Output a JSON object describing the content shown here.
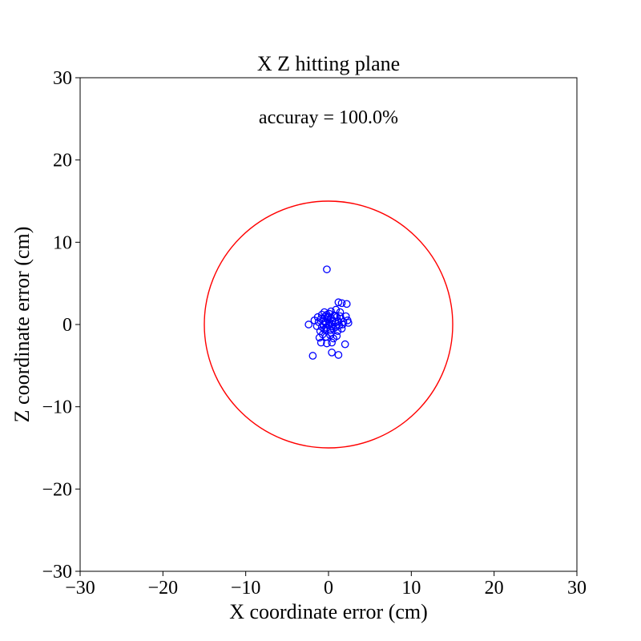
{
  "chart_data": {
    "type": "scatter",
    "title": "X Z hitting plane",
    "xlabel": "X coordinate error (cm)",
    "ylabel": "Z coordinate error (cm)",
    "xlim": [
      -30,
      30
    ],
    "ylim": [
      -30,
      30
    ],
    "xticks": [
      -30,
      -20,
      -10,
      0,
      10,
      20,
      30
    ],
    "yticks": [
      -30,
      -20,
      -10,
      0,
      10,
      20,
      30
    ],
    "xtick_labels": [
      "−30",
      "−20",
      "−10",
      "0",
      "10",
      "20",
      "30"
    ],
    "ytick_labels": [
      "−30",
      "−20",
      "−10",
      "0",
      "10",
      "20",
      "30"
    ],
    "grid": false,
    "annotation": "accuray = 100.0%",
    "colors": {
      "points": "#0000ff",
      "circle": "#ff0000",
      "axes": "#000000"
    },
    "circle": {
      "center": [
        0,
        0
      ],
      "radius": 15
    },
    "points": [
      {
        "x": -0.2,
        "y": 6.7
      },
      {
        "x": 1.2,
        "y": 2.7
      },
      {
        "x": 1.6,
        "y": 2.6
      },
      {
        "x": 2.2,
        "y": 2.5
      },
      {
        "x": -0.5,
        "y": 1.5
      },
      {
        "x": -0.2,
        "y": 1.2
      },
      {
        "x": 0.3,
        "y": 1.6
      },
      {
        "x": 0.9,
        "y": 1.8
      },
      {
        "x": 1.4,
        "y": 1.5
      },
      {
        "x": 2.1,
        "y": 1.0
      },
      {
        "x": 2.3,
        "y": 0.5
      },
      {
        "x": 2.4,
        "y": 0.2
      },
      {
        "x": -2.4,
        "y": 0.0
      },
      {
        "x": -1.7,
        "y": 0.5
      },
      {
        "x": -1.4,
        "y": -0.2
      },
      {
        "x": -1.2,
        "y": 0.3
      },
      {
        "x": -1.0,
        "y": -0.8
      },
      {
        "x": -0.9,
        "y": 0.7
      },
      {
        "x": -0.8,
        "y": -0.3
      },
      {
        "x": -0.6,
        "y": 0.4
      },
      {
        "x": -0.5,
        "y": -0.6
      },
      {
        "x": -0.4,
        "y": 1.0
      },
      {
        "x": -0.3,
        "y": 0.1
      },
      {
        "x": -0.2,
        "y": -0.4
      },
      {
        "x": -0.1,
        "y": 0.6
      },
      {
        "x": 0.0,
        "y": -0.1
      },
      {
        "x": 0.1,
        "y": 0.3
      },
      {
        "x": 0.2,
        "y": -0.7
      },
      {
        "x": 0.3,
        "y": 0.8
      },
      {
        "x": 0.4,
        "y": -0.2
      },
      {
        "x": 0.5,
        "y": 0.5
      },
      {
        "x": 0.6,
        "y": -0.5
      },
      {
        "x": 0.7,
        "y": 1.1
      },
      {
        "x": 0.8,
        "y": 0.2
      },
      {
        "x": 0.9,
        "y": -0.3
      },
      {
        "x": 1.0,
        "y": 0.9
      },
      {
        "x": 1.1,
        "y": -0.8
      },
      {
        "x": 1.2,
        "y": 0.4
      },
      {
        "x": 1.3,
        "y": -0.1
      },
      {
        "x": 1.5,
        "y": 0.7
      },
      {
        "x": 1.6,
        "y": -0.5
      },
      {
        "x": 1.8,
        "y": 0.3
      },
      {
        "x": -0.7,
        "y": -1.2
      },
      {
        "x": -0.3,
        "y": -1.5
      },
      {
        "x": 0.2,
        "y": -1.3
      },
      {
        "x": 0.6,
        "y": -1.7
      },
      {
        "x": 1.0,
        "y": -1.4
      },
      {
        "x": -1.1,
        "y": -1.6
      },
      {
        "x": -0.9,
        "y": -2.2
      },
      {
        "x": -0.2,
        "y": -2.3
      },
      {
        "x": 0.4,
        "y": -2.2
      },
      {
        "x": 2.0,
        "y": -2.4
      },
      {
        "x": -1.9,
        "y": -3.8
      },
      {
        "x": 0.4,
        "y": -3.4
      },
      {
        "x": 1.2,
        "y": -3.7
      },
      {
        "x": -0.6,
        "y": 0.0
      },
      {
        "x": 0.0,
        "y": 0.9
      },
      {
        "x": 0.3,
        "y": -1.0
      },
      {
        "x": -0.4,
        "y": 0.3
      },
      {
        "x": 0.5,
        "y": 0.0
      },
      {
        "x": 0.1,
        "y": 1.3
      },
      {
        "x": -0.8,
        "y": 1.2
      },
      {
        "x": 1.4,
        "y": 1.0
      },
      {
        "x": 1.7,
        "y": 0.0
      },
      {
        "x": -1.3,
        "y": 0.9
      }
    ]
  }
}
